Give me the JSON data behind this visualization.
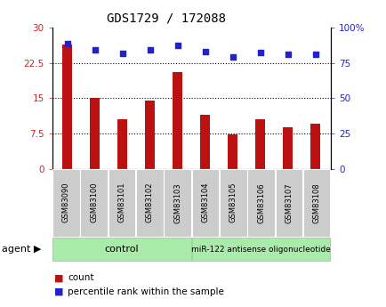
{
  "title": "GDS1729 / 172088",
  "categories": [
    "GSM83090",
    "GSM83100",
    "GSM83101",
    "GSM83102",
    "GSM83103",
    "GSM83104",
    "GSM83105",
    "GSM83106",
    "GSM83107",
    "GSM83108"
  ],
  "counts": [
    26.5,
    15.0,
    10.5,
    14.5,
    20.5,
    11.5,
    7.3,
    10.5,
    8.8,
    9.5
  ],
  "percentile_ranks": [
    88.5,
    84.5,
    82.0,
    84.0,
    87.5,
    83.0,
    79.5,
    82.5,
    81.0,
    81.0
  ],
  "bar_color": "#BB1111",
  "dot_color": "#2222CC",
  "left_ylim": [
    0,
    30
  ],
  "right_ylim": [
    0,
    100
  ],
  "left_yticks": [
    0,
    7.5,
    15,
    22.5,
    30
  ],
  "left_yticklabels": [
    "0",
    "7.5",
    "15",
    "22.5",
    "30"
  ],
  "right_yticks": [
    0,
    25,
    50,
    75,
    100
  ],
  "right_yticklabels": [
    "0",
    "25",
    "50",
    "75",
    "100%"
  ],
  "dotted_lines": [
    7.5,
    15,
    22.5
  ],
  "group1_label": "control",
  "group2_label": "miR-122 antisense oligonucleotide",
  "group_bg": "#AAEAAA",
  "tick_bg": "#CCCCCC",
  "agent_label": "agent",
  "legend_count_label": "count",
  "legend_percentile_label": "percentile rank within the sample",
  "title_fontsize": 10,
  "axis_label_color_left": "#CC2222",
  "axis_label_color_right": "#2222CC"
}
